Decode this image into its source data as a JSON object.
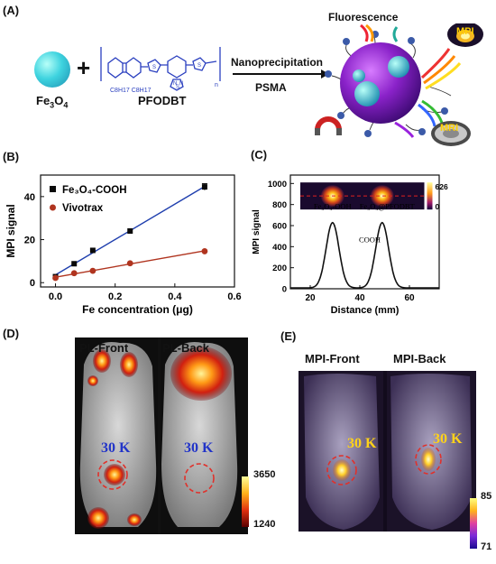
{
  "panel_labels": {
    "a": "(A)",
    "b": "(B)",
    "c": "(C)",
    "d": "(D)",
    "e": "(E)"
  },
  "panel_a": {
    "fe3o4_label": "Fe3O4",
    "polymer_label": "PFODBT",
    "alkyl_label": "C8H17 C8H17",
    "arrow_top": "Nanoprecipitation",
    "arrow_bottom": "PSMA",
    "fluorescence": "Fluorescence",
    "mpi": "MPI",
    "mri": "MRI",
    "polymer_atoms": [
      "S",
      "N",
      "S",
      "N",
      "S"
    ],
    "n_subscript": "n"
  },
  "chart_data": [
    {
      "type": "scatter",
      "title": "",
      "xlabel": "Fe concentration (μg)",
      "ylabel": "MPI signal",
      "xlim": [
        -0.05,
        0.6
      ],
      "ylim": [
        -2,
        50
      ],
      "xticks": [
        "0.0",
        "0.2",
        "0.4",
        "0.6"
      ],
      "yticks": [
        "0",
        "20",
        "40"
      ],
      "series": [
        {
          "name": "Fe3O4-COOH",
          "marker": "square",
          "color": "#0a0a0a",
          "line_color": "#1f3fae",
          "x": [
            0.0,
            0.0625,
            0.125,
            0.25,
            0.5
          ],
          "y": [
            2.8,
            8.8,
            15.0,
            24.0,
            44.5
          ],
          "err_last": 1.5
        },
        {
          "name": "Vivotrax",
          "marker": "circle",
          "color": "#b0341f",
          "line_color": "#b0341f",
          "x": [
            0.0,
            0.0625,
            0.125,
            0.25,
            0.5
          ],
          "y": [
            2.2,
            4.4,
            5.5,
            9.0,
            14.6
          ],
          "err_last": 0.6
        }
      ],
      "legend": "top-left"
    },
    {
      "type": "line",
      "title": "",
      "xlabel": "Distance (mm)",
      "ylabel": "MPI signal",
      "xlim": [
        12,
        72
      ],
      "ylim": [
        0,
        1080
      ],
      "xticks": [
        "20",
        "40",
        "60"
      ],
      "yticks": [
        "0",
        "200",
        "400",
        "600",
        "800",
        "1000"
      ],
      "peaks": [
        {
          "center": 29,
          "height": 620,
          "sigma": 2.6
        },
        {
          "center": 49,
          "height": 620,
          "sigma": 2.6
        }
      ],
      "baseline": 8,
      "annotations": [
        "Fe3O4-OOH",
        "Fe3O4@PFODBT",
        "COOH"
      ],
      "colorbar": {
        "max": "626",
        "min": "0"
      }
    }
  ],
  "panel_d": {
    "front": "PL-Front",
    "back": "PL-Back",
    "label_front": "30 K",
    "label_back": "30 K",
    "cbar_max": "3650",
    "cbar_min": "1240"
  },
  "panel_e": {
    "front": "MPI-Front",
    "back": "MPI-Back",
    "label_front": "30 K",
    "label_back": "30 K",
    "cbar_max": "85",
    "cbar_min": "71"
  }
}
